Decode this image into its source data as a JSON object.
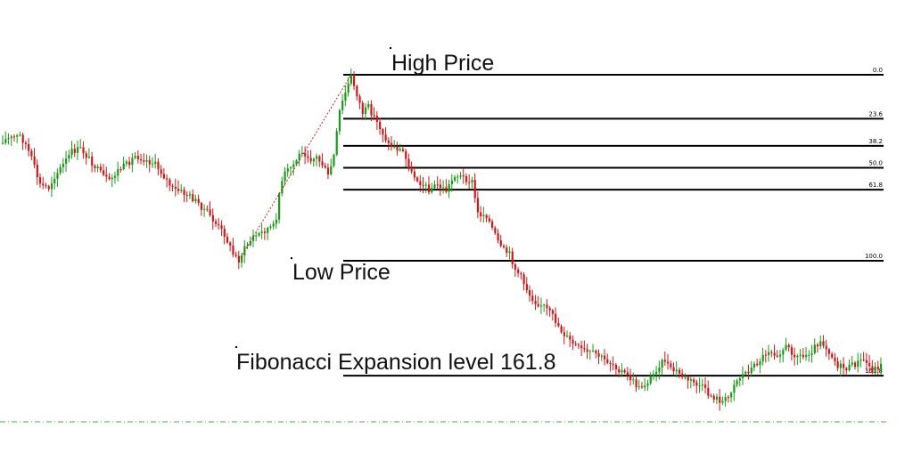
{
  "chart_data": {
    "type": "candlestick",
    "title": "",
    "xlabel": "",
    "ylabel": "",
    "grid": false,
    "colors": {
      "bull": "#1a9a1a",
      "bear": "#d01818",
      "level_line": "#000000",
      "trend_line": "#cc2222",
      "baseline": "#3cb43c"
    },
    "annotations": {
      "high": "High Price",
      "low": "Low Price",
      "expansion": "Fibonacci Expansion level  161.8"
    },
    "fib_levels": [
      {
        "label": "0.0",
        "value": 0.0
      },
      {
        "label": "23.6",
        "value": 23.6
      },
      {
        "label": "38.2",
        "value": 38.2
      },
      {
        "label": "50.0",
        "value": 50.0
      },
      {
        "label": "61.8",
        "value": 61.8
      },
      {
        "label": "100.0",
        "value": 100.0
      },
      {
        "label": "161.8",
        "value": 161.8
      }
    ],
    "close_path": [
      [
        0,
        35.3
      ],
      [
        2,
        34.5
      ],
      [
        6,
        33.0
      ],
      [
        8,
        37.6
      ],
      [
        10,
        45.3
      ],
      [
        13,
        59.3
      ],
      [
        16,
        60.8
      ],
      [
        18,
        54.6
      ],
      [
        21,
        48.4
      ],
      [
        24,
        41.4
      ],
      [
        27,
        39.9
      ],
      [
        30,
        45.3
      ],
      [
        34,
        53.1
      ],
      [
        37,
        57.7
      ],
      [
        40,
        51.5
      ],
      [
        43,
        48.4
      ],
      [
        46,
        43.7
      ],
      [
        49,
        45.3
      ],
      [
        53,
        48.4
      ],
      [
        56,
        54.6
      ],
      [
        59,
        61.6
      ],
      [
        62,
        63.1
      ],
      [
        65,
        65.5
      ],
      [
        68,
        69.4
      ],
      [
        71,
        74.0
      ],
      [
        74,
        80.3
      ],
      [
        77,
        85.7
      ],
      [
        80,
        96.6
      ],
      [
        82,
        99.7
      ],
      [
        84,
        93.5
      ],
      [
        87,
        87.3
      ],
      [
        90,
        84.9
      ],
      [
        92,
        82.6
      ],
      [
        94,
        81.8
      ],
      [
        95,
        76.4
      ],
      [
        96,
        63.9
      ],
      [
        98,
        53.1
      ],
      [
        101,
        48.4
      ],
      [
        104,
        40.7
      ],
      [
        107,
        45.3
      ],
      [
        109,
        44.5
      ],
      [
        111,
        48.4
      ],
      [
        113,
        54.6
      ],
      [
        115,
        43.7
      ],
      [
        117,
        19.8
      ],
      [
        119,
        9.7
      ],
      [
        121,
        1.1
      ],
      [
        123,
        10.5
      ],
      [
        125,
        20.6
      ],
      [
        127,
        17.5
      ],
      [
        129,
        22.9
      ],
      [
        131,
        28.4
      ],
      [
        134,
        37.6
      ],
      [
        137,
        39.9
      ],
      [
        139,
        41.4
      ],
      [
        142,
        53.1
      ],
      [
        145,
        57.7
      ],
      [
        148,
        61.6
      ],
      [
        151,
        59.3
      ],
      [
        154,
        62.4
      ],
      [
        157,
        53.9
      ],
      [
        160,
        55.4
      ],
      [
        163,
        57.7
      ],
      [
        165,
        74.8
      ],
      [
        168,
        75.6
      ],
      [
        171,
        86.5
      ],
      [
        173,
        93.5
      ],
      [
        176,
        96.6
      ],
      [
        178,
        104.4
      ],
      [
        180,
        109.0
      ],
      [
        183,
        118.4
      ],
      [
        185,
        122.2
      ],
      [
        188,
        124.6
      ],
      [
        191,
        130.0
      ],
      [
        194,
        137.8
      ],
      [
        197,
        143.3
      ],
      [
        200,
        147.1
      ],
      [
        203,
        149.5
      ],
      [
        206,
        150.2
      ],
      [
        209,
        153.4
      ],
      [
        212,
        155.7
      ],
      [
        215,
        159.6
      ],
      [
        218,
        163.4
      ],
      [
        221,
        168.9
      ],
      [
        224,
        165.0
      ],
      [
        226,
        161.1
      ],
      [
        228,
        155.7
      ],
      [
        230,
        153.4
      ],
      [
        232,
        158.8
      ],
      [
        234,
        159.6
      ],
      [
        237,
        163.4
      ],
      [
        240,
        165.7
      ],
      [
        243,
        168.1
      ],
      [
        245,
        172.0
      ],
      [
        248,
        174.3
      ],
      [
        250,
        175.9
      ],
      [
        252,
        173.5
      ],
      [
        254,
        165.7
      ],
      [
        257,
        161.1
      ],
      [
        260,
        158.0
      ],
      [
        263,
        153.4
      ],
      [
        266,
        148.0
      ],
      [
        269,
        150.2
      ],
      [
        272,
        146.4
      ],
      [
        275,
        150.2
      ],
      [
        278,
        151.8
      ],
      [
        281,
        148.0
      ],
      [
        284,
        142.5
      ],
      [
        287,
        148.7
      ],
      [
        290,
        156.5
      ],
      [
        293,
        158.0
      ],
      [
        296,
        155.7
      ],
      [
        299,
        153.4
      ],
      [
        302,
        158.8
      ],
      [
        305,
        156.5
      ]
    ]
  }
}
